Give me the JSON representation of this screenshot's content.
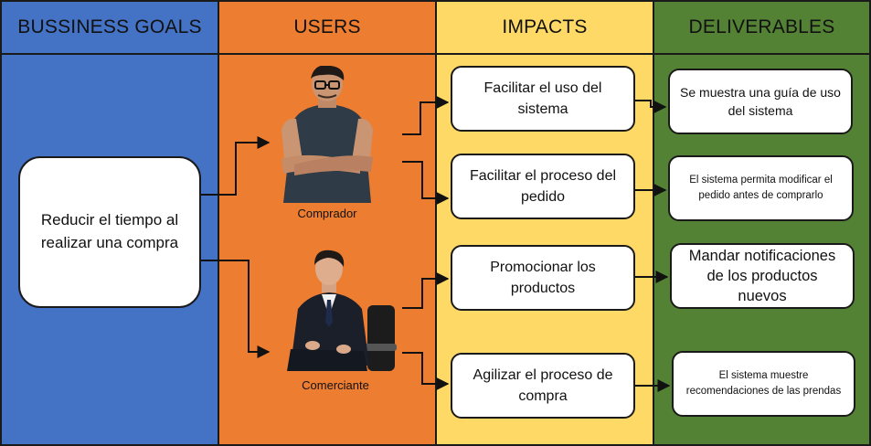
{
  "headers": {
    "goals": "BUSSINESS GOALS",
    "users": "USERS",
    "impacts": "IMPACTS",
    "deliverables": "DELIVERABLES"
  },
  "goal": "Reducir el tiempo al realizar una compra",
  "users": [
    {
      "label": "Comprador"
    },
    {
      "label": "Comerciante"
    }
  ],
  "impacts": [
    "Facilitar el uso del sistema",
    "Facilitar el proceso del pedido",
    "Promocionar los productos",
    "Agilizar el proceso de compra"
  ],
  "deliverables": [
    "Se muestra una guía de uso del sistema",
    "El sistema permita modificar el pedido antes de comprarlo",
    "Mandar notificaciones de los productos nuevos",
    "El sistema muestre recomendaciones de las prendas"
  ],
  "colors": {
    "goals": "#4472c4",
    "users": "#ed7d31",
    "impacts": "#ffd966",
    "deliverables": "#548235"
  }
}
